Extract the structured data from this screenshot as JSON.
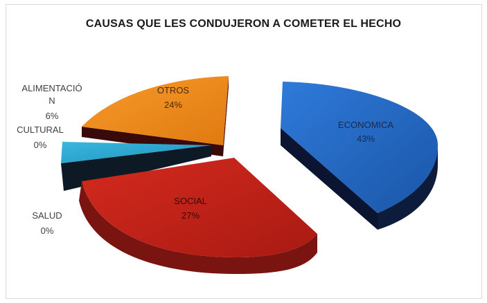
{
  "chart_data": {
    "type": "pie",
    "title": "CAUSAS QUE LES CONDUJERON A COMETER EL HECHO",
    "slices": [
      {
        "name": "ECONOMICA",
        "value": 43,
        "label": "43%",
        "color": "#2468c4"
      },
      {
        "name": "SOCIAL",
        "value": 27,
        "label": "27%",
        "color": "#c0231a"
      },
      {
        "name": "SALUD",
        "value": 0,
        "label": "0%",
        "color": "#7a1a1a"
      },
      {
        "name": "CULTURAL",
        "value": 0,
        "label": "0%",
        "color": "#2fa7cf"
      },
      {
        "name": "ALIMENTACIÓ N",
        "value": 6,
        "label": "6%",
        "color": "#2fa7cf"
      },
      {
        "name": "OTROS",
        "value": 24,
        "label": "24%",
        "color": "#f08c1e"
      }
    ],
    "style": "3d-exploded"
  }
}
